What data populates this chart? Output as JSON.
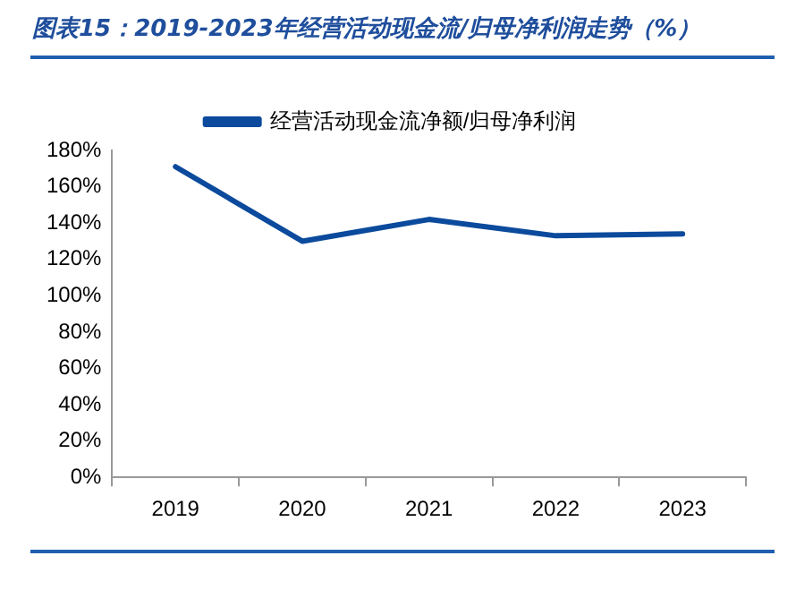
{
  "chart_data": {
    "type": "line",
    "title": "图表15：2019-2023年经营活动现金流/归母净利润走势（%）",
    "categories": [
      "2019",
      "2020",
      "2021",
      "2022",
      "2023"
    ],
    "series": [
      {
        "name": "经营活动现金流净额/归母净利润",
        "color": "#0b4a9c",
        "values": [
          171,
          130,
          142,
          133,
          134
        ]
      }
    ],
    "ylim": [
      0,
      180
    ],
    "yticks": [
      {
        "value": 0,
        "label": "0%"
      },
      {
        "value": 20,
        "label": "20%"
      },
      {
        "value": 40,
        "label": "40%"
      },
      {
        "value": 60,
        "label": "60%"
      },
      {
        "value": 80,
        "label": "80%"
      },
      {
        "value": 100,
        "label": "100%"
      },
      {
        "value": 120,
        "label": "120%"
      },
      {
        "value": 140,
        "label": "140%"
      },
      {
        "value": 160,
        "label": "160%"
      },
      {
        "value": 180,
        "label": "180%"
      }
    ],
    "grid": false,
    "legend": "top",
    "marker": "none",
    "line_style": "solid"
  }
}
